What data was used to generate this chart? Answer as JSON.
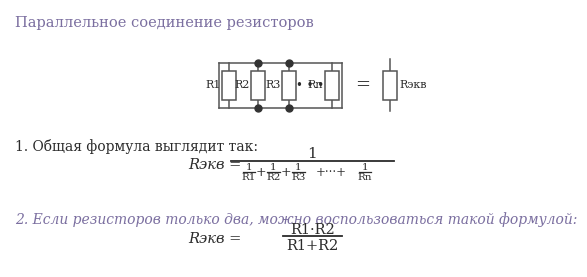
{
  "title": "Параллельное соединение резисторов",
  "title_color": "#7b6fa0",
  "title_fontsize": 10.5,
  "bg_color": "#ffffff",
  "text1": "1. Общая формула выглядит так:",
  "text1_color": "#2b2b2b",
  "text1_fontsize": 10,
  "text2": "2. Если резисторов только два, можно воспользоваться такой формулой:",
  "text2_color": "#7b6fa0",
  "text2_fontsize": 10,
  "line_color": "#555555",
  "dot_color": "#333333",
  "formula_color": "#2b2b2b",
  "formula2_color": "#2b2b2b"
}
